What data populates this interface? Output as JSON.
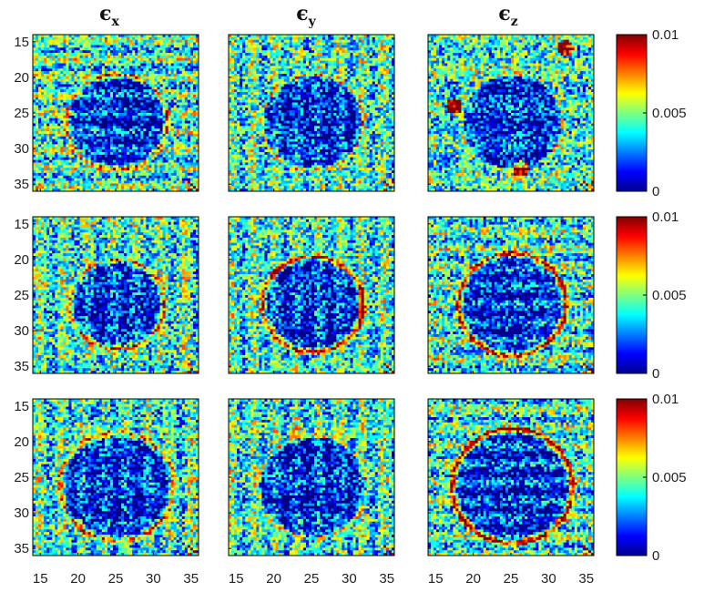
{
  "chart_data": {
    "type": "heatmap",
    "column_titles": [
      {
        "symbol": "ϵ",
        "subscript": "x"
      },
      {
        "symbol": "ϵ",
        "subscript": "y"
      },
      {
        "symbol": "ϵ",
        "subscript": "z"
      }
    ],
    "rows": 3,
    "columns": 3,
    "x_range": [
      14,
      36
    ],
    "y_range": [
      14,
      36
    ],
    "x_ticks": [
      15,
      20,
      25,
      30,
      35
    ],
    "y_ticks": [
      15,
      20,
      25,
      30,
      35
    ],
    "y_axis_reversed": true,
    "colorbar": {
      "colormap": "jet",
      "range": [
        0,
        0.01
      ],
      "tick_labels": [
        "0.01",
        "0.005",
        "0"
      ],
      "tick_values": [
        0.01,
        0.005,
        0
      ]
    },
    "colorbar_colors": [
      "#00008f",
      "#0000ff",
      "#00ffff",
      "#ffff00",
      "#ff0000",
      "#800000"
    ]
  }
}
